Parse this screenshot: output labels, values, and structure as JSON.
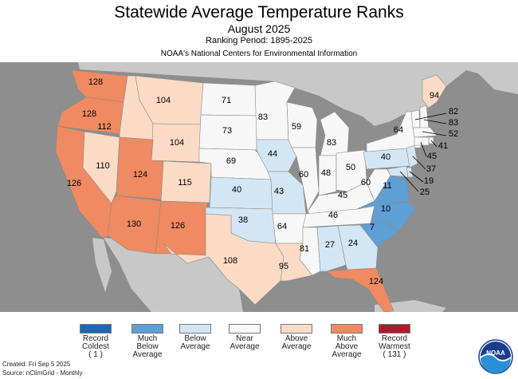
{
  "header": {
    "title": "Statewide Average Temperature Ranks",
    "month": "August 2025",
    "period": "Ranking Period: 1895-2025",
    "org": "NOAA's National Centers for Environmental Information"
  },
  "colors": {
    "record_coldest": "#2166ac",
    "much_below": "#5e9fd4",
    "below": "#d3e6f5",
    "near": "#f7f7f7",
    "above": "#fbdbc6",
    "much_above": "#ef8a62",
    "record_warmest": "#b2182b",
    "ocean": "#8e8e8e",
    "land_outside": "#c8c8c8"
  },
  "states": [
    {
      "abbr": "WA",
      "rank": "128",
      "category": "much_above"
    },
    {
      "abbr": "OR",
      "rank": "128",
      "category": "much_above"
    },
    {
      "abbr": "CA",
      "rank": "126",
      "category": "much_above"
    },
    {
      "abbr": "NV",
      "rank": "110",
      "category": "above"
    },
    {
      "abbr": "ID",
      "rank": "112",
      "category": "above"
    },
    {
      "abbr": "MT",
      "rank": "104",
      "category": "above"
    },
    {
      "abbr": "WY",
      "rank": "104",
      "category": "above"
    },
    {
      "abbr": "UT",
      "rank": "124",
      "category": "much_above"
    },
    {
      "abbr": "CO",
      "rank": "115",
      "category": "above"
    },
    {
      "abbr": "AZ",
      "rank": "130",
      "category": "much_above"
    },
    {
      "abbr": "NM",
      "rank": "126",
      "category": "much_above"
    },
    {
      "abbr": "ND",
      "rank": "71",
      "category": "near"
    },
    {
      "abbr": "SD",
      "rank": "73",
      "category": "near"
    },
    {
      "abbr": "NE",
      "rank": "69",
      "category": "near"
    },
    {
      "abbr": "KS",
      "rank": "40",
      "category": "below"
    },
    {
      "abbr": "OK",
      "rank": "38",
      "category": "below"
    },
    {
      "abbr": "TX",
      "rank": "108",
      "category": "above"
    },
    {
      "abbr": "MN",
      "rank": "83",
      "category": "near"
    },
    {
      "abbr": "IA",
      "rank": "44",
      "category": "below"
    },
    {
      "abbr": "MO",
      "rank": "43",
      "category": "below"
    },
    {
      "abbr": "AR",
      "rank": "64",
      "category": "near"
    },
    {
      "abbr": "LA",
      "rank": "95",
      "category": "above"
    },
    {
      "abbr": "WI",
      "rank": "59",
      "category": "near"
    },
    {
      "abbr": "IL",
      "rank": "60",
      "category": "near"
    },
    {
      "abbr": "MI",
      "rank": "83",
      "category": "near"
    },
    {
      "abbr": "IN",
      "rank": "48",
      "category": "near"
    },
    {
      "abbr": "OH",
      "rank": "50",
      "category": "near"
    },
    {
      "abbr": "KY",
      "rank": "45",
      "category": "near"
    },
    {
      "abbr": "TN",
      "rank": "46",
      "category": "near"
    },
    {
      "abbr": "MS",
      "rank": "81",
      "category": "near"
    },
    {
      "abbr": "AL",
      "rank": "27",
      "category": "below"
    },
    {
      "abbr": "GA",
      "rank": "24",
      "category": "below"
    },
    {
      "abbr": "FL",
      "rank": "124",
      "category": "much_above"
    },
    {
      "abbr": "SC",
      "rank": "7",
      "category": "much_below"
    },
    {
      "abbr": "NC",
      "rank": "10",
      "category": "much_below"
    },
    {
      "abbr": "VA",
      "rank": "11",
      "category": "much_below"
    },
    {
      "abbr": "WV",
      "rank": "60",
      "category": "near"
    },
    {
      "abbr": "PA",
      "rank": "40",
      "category": "below"
    },
    {
      "abbr": "NY",
      "rank": "64",
      "category": "near"
    },
    {
      "abbr": "ME",
      "rank": "94",
      "category": "above"
    },
    {
      "abbr": "VT",
      "rank": "82",
      "category": "near"
    },
    {
      "abbr": "NH",
      "rank": "83",
      "category": "near"
    },
    {
      "abbr": "MA",
      "rank": "52",
      "category": "near"
    },
    {
      "abbr": "RI",
      "rank": "41",
      "category": "near"
    },
    {
      "abbr": "CT",
      "rank": "45",
      "category": "near"
    },
    {
      "abbr": "NJ",
      "rank": "37",
      "category": "below"
    },
    {
      "abbr": "DE",
      "rank": "19",
      "category": "below"
    },
    {
      "abbr": "MD",
      "rank": "25",
      "category": "below"
    }
  ],
  "legend": [
    {
      "key": "record_coldest",
      "lines": [
        "Record",
        "Coldest",
        "( 1 )"
      ]
    },
    {
      "key": "much_below",
      "lines": [
        "Much",
        "Below",
        "Average"
      ]
    },
    {
      "key": "below",
      "lines": [
        "Below",
        "Average"
      ]
    },
    {
      "key": "near",
      "lines": [
        "Near",
        "Average"
      ]
    },
    {
      "key": "above",
      "lines": [
        "Above",
        "Average"
      ]
    },
    {
      "key": "much_above",
      "lines": [
        "Much",
        "Above",
        "Average"
      ]
    },
    {
      "key": "record_warmest",
      "lines": [
        "Record",
        "Warmest",
        "( 131 )"
      ]
    }
  ],
  "footer": {
    "created": "Created: Fri Sep  5 2025",
    "source": "Source: nClimGrid - Monthly"
  },
  "logo": {
    "text": "NOAA"
  }
}
